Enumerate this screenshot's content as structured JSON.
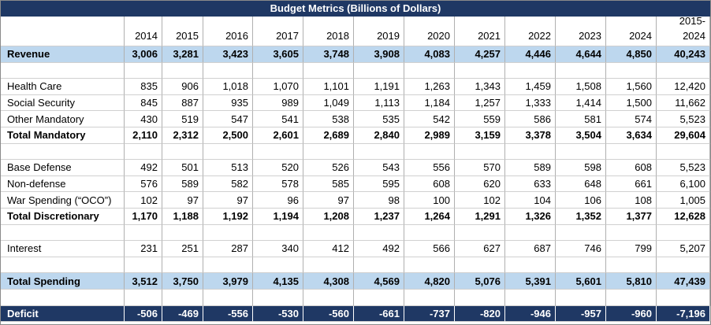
{
  "title": "Budget Metrics (Billions of Dollars)",
  "table": {
    "columns": [
      "2014",
      "2015",
      "2016",
      "2017",
      "2018",
      "2019",
      "2020",
      "2021",
      "2022",
      "2023",
      "2024",
      "2015-\n2024"
    ],
    "sections": [
      [
        {
          "label": "Revenue",
          "bold": true,
          "fill": "#bdd7ee",
          "values": [
            "3,006",
            "3,281",
            "3,423",
            "3,605",
            "3,748",
            "3,908",
            "4,083",
            "4,257",
            "4,446",
            "4,644",
            "4,850",
            "40,243"
          ]
        }
      ],
      [
        {
          "label": "Health Care",
          "values": [
            "835",
            "906",
            "1,018",
            "1,070",
            "1,101",
            "1,191",
            "1,263",
            "1,343",
            "1,459",
            "1,508",
            "1,560",
            "12,420"
          ]
        },
        {
          "label": "Social Security",
          "values": [
            "845",
            "887",
            "935",
            "989",
            "1,049",
            "1,113",
            "1,184",
            "1,257",
            "1,333",
            "1,414",
            "1,500",
            "11,662"
          ]
        },
        {
          "label": "Other Mandatory",
          "values": [
            "430",
            "519",
            "547",
            "541",
            "538",
            "535",
            "542",
            "559",
            "586",
            "581",
            "574",
            "5,523"
          ]
        },
        {
          "label": "Total Mandatory",
          "bold": true,
          "values": [
            "2,110",
            "2,312",
            "2,500",
            "2,601",
            "2,689",
            "2,840",
            "2,989",
            "3,159",
            "3,378",
            "3,504",
            "3,634",
            "29,604"
          ]
        }
      ],
      [
        {
          "label": "Base Defense",
          "values": [
            "492",
            "501",
            "513",
            "520",
            "526",
            "543",
            "556",
            "570",
            "589",
            "598",
            "608",
            "5,523"
          ]
        },
        {
          "label": "Non-defense",
          "values": [
            "576",
            "589",
            "582",
            "578",
            "585",
            "595",
            "608",
            "620",
            "633",
            "648",
            "661",
            "6,100"
          ]
        },
        {
          "label": "War Spending (“OCO”)",
          "values": [
            "102",
            "97",
            "97",
            "96",
            "97",
            "98",
            "100",
            "102",
            "104",
            "106",
            "108",
            "1,005"
          ]
        },
        {
          "label": "Total Discretionary",
          "bold": true,
          "values": [
            "1,170",
            "1,188",
            "1,192",
            "1,194",
            "1,208",
            "1,237",
            "1,264",
            "1,291",
            "1,326",
            "1,352",
            "1,377",
            "12,628"
          ]
        }
      ],
      [
        {
          "label": "Interest",
          "values": [
            "231",
            "251",
            "287",
            "340",
            "412",
            "492",
            "566",
            "627",
            "687",
            "746",
            "799",
            "5,207"
          ]
        }
      ],
      [
        {
          "label": "Total Spending",
          "bold": true,
          "fill": "#bdd7ee",
          "values": [
            "3,512",
            "3,750",
            "3,979",
            "4,135",
            "4,308",
            "4,569",
            "4,820",
            "5,076",
            "5,391",
            "5,601",
            "5,810",
            "47,439"
          ]
        }
      ],
      [
        {
          "label": "Deficit",
          "bold": true,
          "fill": "#1f3864",
          "text": "#ffffff",
          "values": [
            "-506",
            "-469",
            "-556",
            "-530",
            "-560",
            "-661",
            "-737",
            "-820",
            "-946",
            "-957",
            "-960",
            "-7,196"
          ]
        }
      ]
    ]
  }
}
